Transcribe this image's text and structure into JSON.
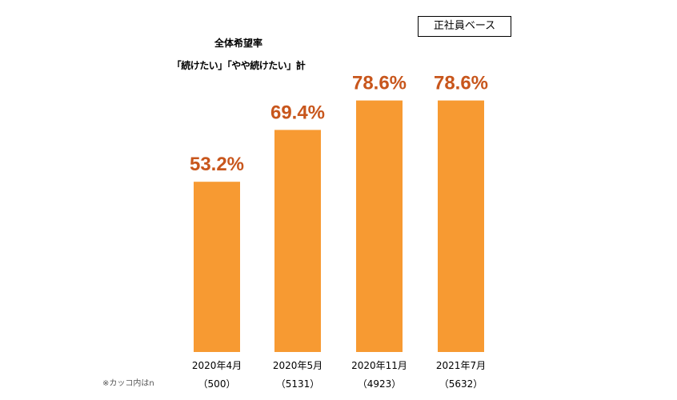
{
  "header": {
    "title": "全体希望率",
    "subtitle": "「続けたい」「やや続けたい」計",
    "base_label": "正社員ベース"
  },
  "footnote": "※カッコ内はn",
  "colors": {
    "bar": "#F79A32",
    "value_label": "#C8561C"
  },
  "chart_data": {
    "type": "bar",
    "title": "全体希望率",
    "subtitle": "「続けたい」「やや続けたい」計",
    "categories": [
      "2020年4月",
      "2020年5月",
      "2020年11月",
      "2021年7月"
    ],
    "sample_sizes": [
      "（500）",
      "（5131）",
      "（4923）",
      "（5632）"
    ],
    "values": [
      53.2,
      69.4,
      78.6,
      78.6
    ],
    "value_labels": [
      "53.2%",
      "69.4%",
      "78.6%",
      "78.6%"
    ],
    "unit": "%",
    "ylim": [
      0,
      100
    ],
    "grid": false,
    "legend": "none"
  }
}
